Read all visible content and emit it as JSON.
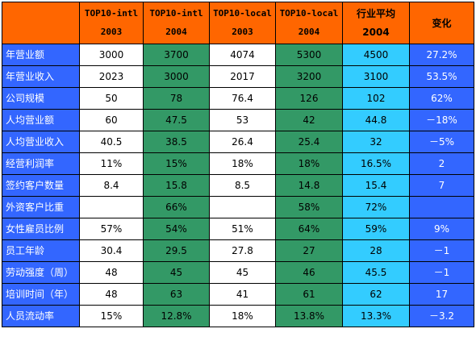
{
  "colors": {
    "header_bg": "#ff6600",
    "label_bg": "#3366ff",
    "white_col": "#ffffff",
    "green_col": "#339966",
    "cyan_col": "#33ccff",
    "change_col": "#3366ff"
  },
  "header": {
    "columns": [
      {
        "line1": "",
        "line2": ""
      },
      {
        "line1": "TOP10-intl",
        "line2": "2003"
      },
      {
        "line1": "TOP10-intl",
        "line2": "2004"
      },
      {
        "line1": "TOP10-local",
        "line2": "2003"
      },
      {
        "line1": "TOP10-local",
        "line2": "2004"
      },
      {
        "line1": "行业平均",
        "line2": "2004"
      },
      {
        "line1": "变化",
        "line2": ""
      }
    ]
  },
  "rows": [
    {
      "label": "年营业额",
      "values": [
        "3000",
        "3700",
        "4074",
        "5300",
        "4500",
        "27.2%"
      ]
    },
    {
      "label": "年营业收入",
      "values": [
        "2023",
        "3000",
        "2017",
        "3200",
        "3100",
        "53.5%"
      ]
    },
    {
      "label": "公司规模",
      "values": [
        "50",
        "78",
        "76.4",
        "126",
        "102",
        "62%"
      ]
    },
    {
      "label": "人均营业额",
      "values": [
        "60",
        "47.5",
        "53",
        "42",
        "44.8",
        "－18%"
      ]
    },
    {
      "label": "人均营业收入",
      "values": [
        "40.5",
        "38.5",
        "26.4",
        "25.4",
        "32",
        "－5%"
      ]
    },
    {
      "label": "经营利润率",
      "values": [
        "11%",
        "15%",
        "18%",
        "18%",
        "16.5%",
        "2"
      ]
    },
    {
      "label": "签约客户数量",
      "values": [
        "8.4",
        "15.8",
        "8.5",
        "14.8",
        "15.4",
        "7"
      ]
    },
    {
      "label": "外资客户比重",
      "values": [
        "",
        "66%",
        "",
        "58%",
        "72%",
        ""
      ]
    },
    {
      "label": "女性雇员比例",
      "values": [
        "57%",
        "54%",
        "51%",
        "64%",
        "59%",
        "9%"
      ]
    },
    {
      "label": "员工年龄",
      "values": [
        "30.4",
        "29.5",
        "27.8",
        "27",
        "28",
        "－1"
      ]
    },
    {
      "label": "劳动强度（周）",
      "values": [
        "48",
        "45",
        "45",
        "46",
        "45.5",
        "－1"
      ]
    },
    {
      "label": "培训时间（年）",
      "values": [
        "48",
        "63",
        "41",
        "61",
        "62",
        "17"
      ]
    },
    {
      "label": "人员流动率",
      "values": [
        "15%",
        "12.8%",
        "18%",
        "13.8%",
        "13.3%",
        "－3.2"
      ]
    }
  ]
}
